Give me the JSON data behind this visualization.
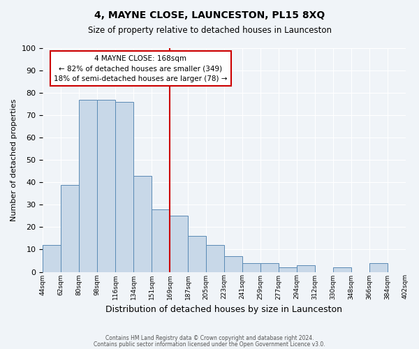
{
  "title": "4, MAYNE CLOSE, LAUNCESTON, PL15 8XQ",
  "subtitle": "Size of property relative to detached houses in Launceston",
  "xlabel": "Distribution of detached houses by size in Launceston",
  "ylabel": "Number of detached properties",
  "bin_labels": [
    "44sqm",
    "62sqm",
    "80sqm",
    "98sqm",
    "116sqm",
    "134sqm",
    "151sqm",
    "169sqm",
    "187sqm",
    "205sqm",
    "223sqm",
    "241sqm",
    "259sqm",
    "277sqm",
    "294sqm",
    "312sqm",
    "330sqm",
    "348sqm",
    "366sqm",
    "384sqm",
    "402sqm"
  ],
  "bar_heights": [
    12,
    39,
    77,
    77,
    76,
    43,
    28,
    25,
    16,
    12,
    7,
    4,
    4,
    2,
    3,
    0,
    2,
    0,
    4,
    0
  ],
  "bar_color": "#c8d8e8",
  "bar_edge_color": "#5a8ab5",
  "vline_x": 7,
  "vline_color": "#cc0000",
  "ylim": [
    0,
    100
  ],
  "yticks": [
    0,
    10,
    20,
    30,
    40,
    50,
    60,
    70,
    80,
    90,
    100
  ],
  "annotation_title": "4 MAYNE CLOSE: 168sqm",
  "annotation_line1": "← 82% of detached houses are smaller (349)",
  "annotation_line2": "18% of semi-detached houses are larger (78) →",
  "footer_line1": "Contains HM Land Registry data © Crown copyright and database right 2024.",
  "footer_line2": "Contains public sector information licensed under the Open Government Licence v3.0.",
  "bg_color": "#f0f4f8",
  "plot_bg_color": "#f0f4f8"
}
